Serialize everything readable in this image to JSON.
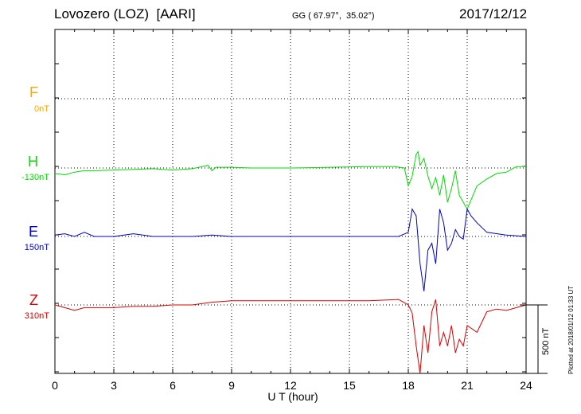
{
  "header": {
    "station": "Lovozero (LOZ)  [AARI]",
    "coords": "GG ( 67.97°,  35.02°)",
    "date": "2017/12/12"
  },
  "footer": {
    "plotted": "Plotted at 2018/01/12 01:33 UT",
    "scale_label": "500 nT"
  },
  "colors": {
    "F": "#ffa500",
    "H": "#00dd00",
    "E": "#0000cc",
    "Z": "#dd0000"
  },
  "chart_data": {
    "type": "line",
    "xlabel": "U T (hour)",
    "xlim": [
      0,
      24
    ],
    "xticks": [
      "0",
      "3",
      "6",
      "9",
      "12",
      "15",
      "18",
      "21",
      "24"
    ],
    "scale_bar_nT": 500,
    "series": [
      {
        "name": "F",
        "baseline_label": "0nT",
        "color": "#ffa500",
        "x": [],
        "y": []
      },
      {
        "name": "H",
        "baseline_label": "-130nT",
        "color": "#00dd00",
        "x": [
          0,
          0.5,
          1,
          1.5,
          2,
          3,
          4,
          5,
          6,
          7,
          7.8,
          8,
          8.2,
          9,
          10,
          12,
          14,
          16,
          17.3,
          17.8,
          18,
          18.2,
          18.4,
          18.5,
          18.6,
          18.8,
          19,
          19.2,
          19.4,
          19.6,
          19.8,
          20,
          20.2,
          20.4,
          20.6,
          20.8,
          21,
          21.5,
          22,
          22.5,
          23,
          23.5,
          24
        ],
        "y": [
          -40,
          -50,
          -30,
          -20,
          -20,
          -15,
          -10,
          -5,
          -15,
          -5,
          20,
          -20,
          5,
          5,
          0,
          0,
          5,
          10,
          10,
          0,
          -130,
          -60,
          100,
          120,
          20,
          70,
          -60,
          -150,
          -70,
          -200,
          -50,
          -250,
          -150,
          -20,
          -200,
          -250,
          -300,
          -130,
          -80,
          -40,
          -30,
          10,
          10
        ]
      },
      {
        "name": "E",
        "baseline_label": "150nT",
        "color": "#0000cc",
        "x": [
          0,
          0.5,
          1,
          1.5,
          2,
          3,
          4,
          5,
          6,
          7,
          8,
          9,
          10,
          12,
          14,
          16,
          17.5,
          18,
          18.2,
          18.4,
          18.6,
          18.8,
          19,
          19.2,
          19.4,
          19.6,
          19.8,
          20,
          20.2,
          20.4,
          20.6,
          20.8,
          21,
          21.2,
          21.5,
          22,
          23,
          24
        ],
        "y": [
          10,
          20,
          0,
          30,
          0,
          0,
          20,
          0,
          0,
          0,
          10,
          0,
          0,
          0,
          0,
          0,
          0,
          30,
          200,
          150,
          -200,
          -400,
          -100,
          -50,
          -200,
          200,
          100,
          -100,
          -50,
          50,
          0,
          -20,
          200,
          150,
          100,
          30,
          10,
          0
        ]
      },
      {
        "name": "Z",
        "baseline_label": "310nT",
        "color": "#dd0000",
        "x": [
          0,
          0.5,
          1,
          1.5,
          2,
          3,
          4,
          5,
          6,
          7,
          8,
          9,
          10,
          12,
          14,
          16,
          17.5,
          18,
          18.2,
          18.4,
          18.6,
          18.8,
          19,
          19.2,
          19.4,
          19.6,
          19.8,
          20,
          20.2,
          20.4,
          20.6,
          20.8,
          21,
          21.5,
          22,
          22.5,
          23,
          24
        ],
        "y": [
          0,
          -20,
          -40,
          -20,
          -20,
          -20,
          -10,
          -10,
          0,
          0,
          20,
          30,
          30,
          30,
          30,
          30,
          40,
          0,
          -60,
          -300,
          -500,
          -150,
          -350,
          -50,
          40,
          -300,
          -200,
          -300,
          -150,
          -350,
          -250,
          -300,
          -150,
          -200,
          -50,
          -30,
          -40,
          0
        ]
      }
    ]
  }
}
